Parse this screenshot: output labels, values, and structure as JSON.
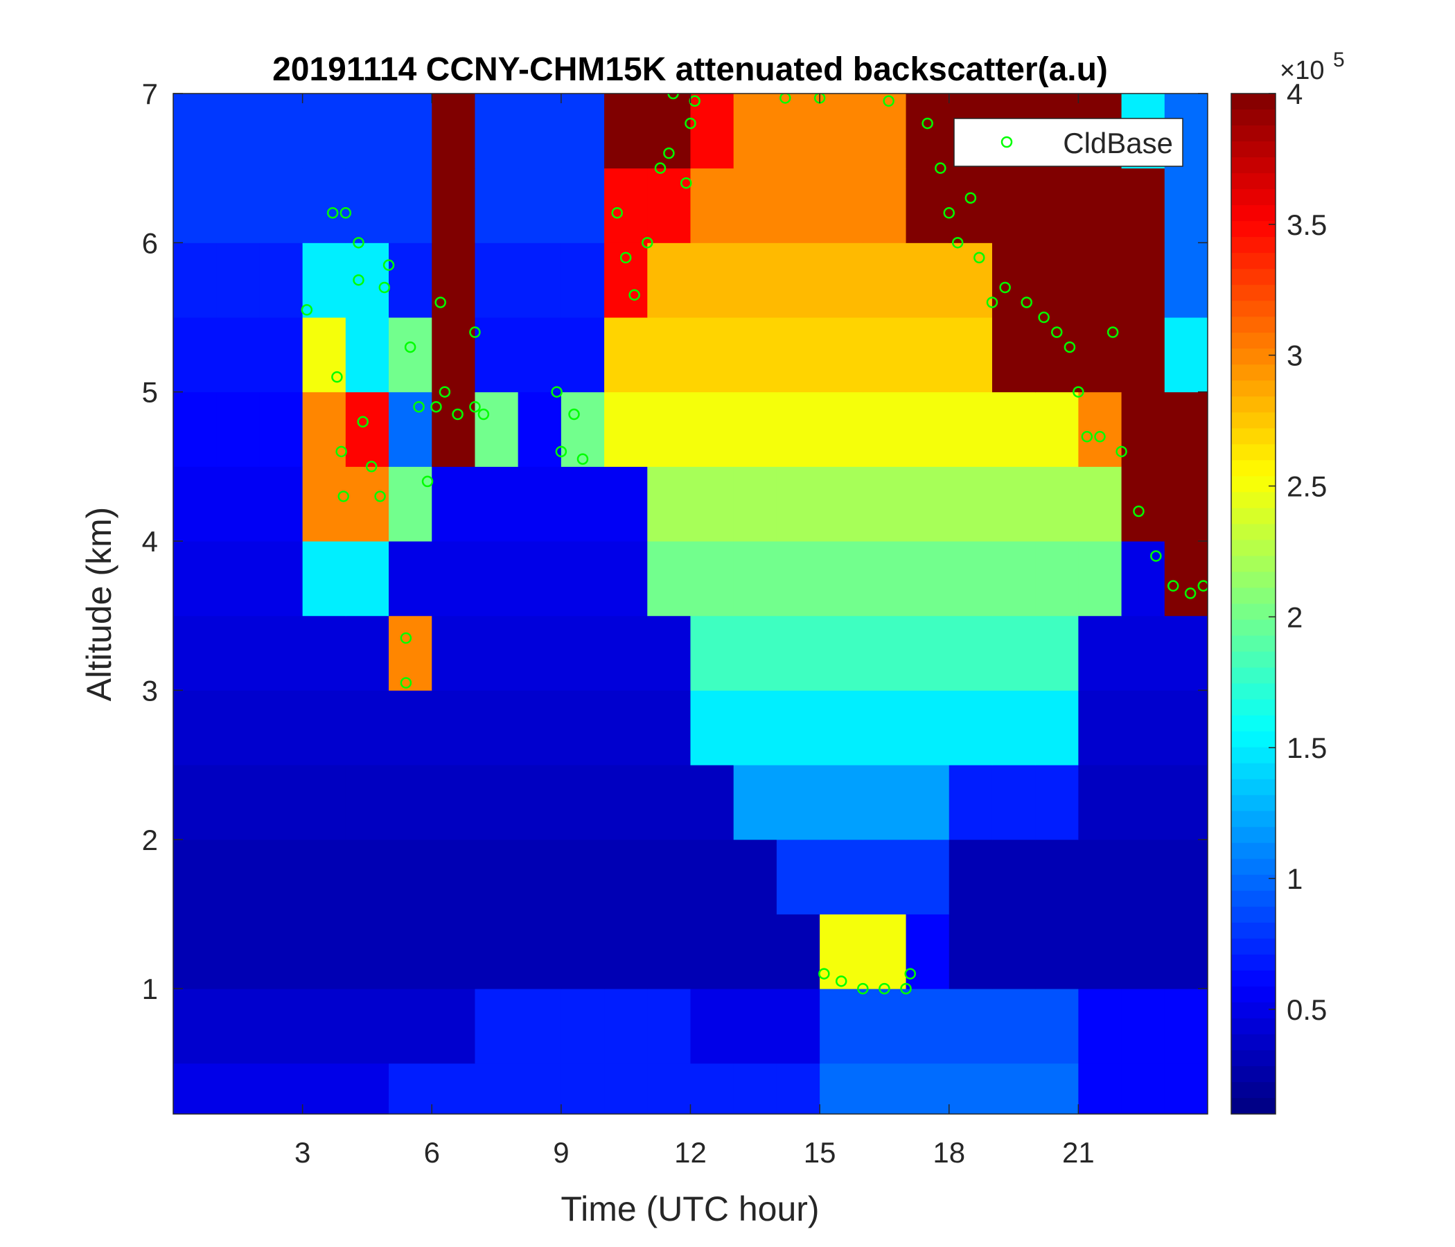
{
  "chart_data": {
    "type": "heatmap",
    "title": "20191114 CCNY-CHM15K attenuated backscatter(a.u)",
    "x_label": "Time (UTC hour)",
    "y_label": "Altitude (km)",
    "xlim": [
      0,
      24
    ],
    "xticks": [
      3,
      6,
      9,
      12,
      15,
      18,
      21
    ],
    "ylim": [
      0.16,
      7
    ],
    "yticks": [
      1,
      2,
      3,
      4,
      5,
      6,
      7
    ],
    "colormap": "jet",
    "clim": [
      0.1,
      4
    ],
    "cticks": [
      0.5,
      1,
      1.5,
      2,
      2.5,
      3,
      3.5,
      4
    ],
    "colorbar_multiplier": "×10",
    "colorbar_exponent": "5",
    "legend_position": "upper right",
    "x": [
      0.5,
      1.5,
      2.5,
      3.5,
      4.5,
      5.5,
      6.5,
      7.5,
      8.5,
      9.5,
      10.5,
      11.5,
      12.5,
      13.5,
      14.5,
      15.5,
      16.5,
      17.5,
      18.5,
      19.5,
      20.5,
      21.5,
      22.5,
      23.5
    ],
    "y": [
      0.25,
      0.75,
      1.25,
      1.75,
      2.25,
      2.75,
      3.25,
      3.75,
      4.25,
      4.75,
      5.25,
      5.75,
      6.25,
      6.75
    ],
    "z": [
      [
        0.5,
        0.5,
        0.5,
        0.5,
        0.5,
        0.7,
        0.7,
        0.7,
        0.7,
        0.7,
        0.7,
        0.7,
        0.7,
        0.7,
        0.7,
        1.0,
        1.0,
        1.0,
        1.0,
        1.0,
        1.0,
        0.6,
        0.6,
        0.6
      ],
      [
        0.4,
        0.4,
        0.4,
        0.4,
        0.4,
        0.4,
        0.4,
        0.7,
        0.7,
        0.7,
        0.7,
        0.7,
        0.5,
        0.5,
        0.5,
        0.9,
        0.9,
        0.9,
        0.9,
        0.9,
        0.9,
        0.6,
        0.6,
        0.6
      ],
      [
        0.3,
        0.3,
        0.3,
        0.3,
        0.3,
        0.3,
        0.3,
        0.3,
        0.3,
        0.3,
        0.3,
        0.3,
        0.3,
        0.3,
        0.3,
        2.5,
        2.5,
        0.6,
        0.3,
        0.3,
        0.3,
        0.3,
        0.3,
        0.3
      ],
      [
        0.3,
        0.3,
        0.3,
        0.3,
        0.3,
        0.3,
        0.3,
        0.3,
        0.3,
        0.3,
        0.3,
        0.3,
        0.3,
        0.3,
        0.8,
        0.8,
        0.8,
        0.8,
        0.3,
        0.3,
        0.3,
        0.3,
        0.3,
        0.3
      ],
      [
        0.35,
        0.35,
        0.35,
        0.35,
        0.35,
        0.35,
        0.35,
        0.35,
        0.35,
        0.35,
        0.35,
        0.35,
        0.35,
        1.2,
        1.2,
        1.2,
        1.2,
        1.2,
        0.7,
        0.7,
        0.7,
        0.35,
        0.35,
        0.35
      ],
      [
        0.4,
        0.4,
        0.4,
        0.4,
        0.4,
        0.4,
        0.4,
        0.4,
        0.4,
        0.4,
        0.4,
        0.4,
        1.5,
        1.5,
        1.5,
        1.5,
        1.5,
        1.5,
        1.5,
        1.5,
        1.5,
        0.4,
        0.4,
        0.4
      ],
      [
        0.45,
        0.45,
        0.45,
        0.45,
        0.45,
        3,
        0.45,
        0.45,
        0.45,
        0.45,
        0.45,
        0.45,
        1.8,
        1.8,
        1.8,
        1.8,
        1.8,
        1.8,
        1.8,
        1.8,
        1.8,
        0.45,
        0.45,
        0.45
      ],
      [
        0.5,
        0.5,
        0.5,
        1.5,
        1.5,
        0.5,
        0.5,
        0.5,
        0.5,
        0.5,
        0.5,
        2.0,
        2.0,
        2.0,
        2.0,
        2.0,
        2.0,
        2.0,
        2.0,
        2.0,
        2.0,
        2.0,
        0.5,
        4
      ],
      [
        0.55,
        0.55,
        0.55,
        3,
        3,
        2,
        0.55,
        0.55,
        0.55,
        0.55,
        0.55,
        2.2,
        2.2,
        2.2,
        2.2,
        2.2,
        2.2,
        2.2,
        2.2,
        2.2,
        2.2,
        2.2,
        4,
        4
      ],
      [
        0.6,
        0.6,
        0.6,
        3,
        3.5,
        1,
        4,
        2,
        0.6,
        2,
        2.5,
        2.5,
        2.5,
        2.5,
        2.5,
        2.5,
        2.5,
        2.5,
        2.5,
        2.5,
        2.5,
        3,
        4,
        4
      ],
      [
        0.65,
        0.65,
        0.65,
        2.5,
        1.5,
        2,
        4,
        0.65,
        0.65,
        0.65,
        2.7,
        2.7,
        2.7,
        2.7,
        2.7,
        2.7,
        2.7,
        2.7,
        2.7,
        4,
        4,
        4,
        4,
        1.5
      ],
      [
        0.7,
        0.7,
        0.7,
        1.5,
        1.5,
        0.7,
        4,
        0.7,
        0.7,
        0.7,
        3.5,
        2.8,
        2.8,
        2.8,
        2.8,
        2.8,
        2.8,
        2.8,
        2.8,
        4,
        4,
        4,
        4,
        1
      ],
      [
        0.8,
        0.8,
        0.8,
        0.8,
        0.8,
        0.8,
        4,
        0.8,
        0.8,
        0.8,
        3.5,
        3.5,
        3,
        3,
        3,
        3,
        3,
        4,
        4,
        4,
        4,
        4,
        4,
        1
      ],
      [
        0.8,
        0.8,
        0.8,
        0.8,
        0.8,
        0.8,
        4,
        0.8,
        0.8,
        0.8,
        4,
        4,
        3.5,
        3,
        3,
        3,
        3,
        4,
        4,
        4,
        4,
        4,
        1.5,
        1
      ]
    ],
    "series": [
      {
        "name": "CldBase",
        "color": "#00ff00",
        "x": [
          3.1,
          3.7,
          3.8,
          3.9,
          3.95,
          4.0,
          4.3,
          4.3,
          4.4,
          4.6,
          4.8,
          4.9,
          5.0,
          5.4,
          5.4,
          5.5,
          5.7,
          5.9,
          6.1,
          6.2,
          6.3,
          6.6,
          7.0,
          7.2,
          7.0,
          8.9,
          9.0,
          9.3,
          9.5,
          10.3,
          10.5,
          10.7,
          11.0,
          11.3,
          11.5,
          11.6,
          11.9,
          12.0,
          12.1,
          14.2,
          15.0,
          15.1,
          15.5,
          16.0,
          16.5,
          17.0,
          17.1,
          16.6,
          17.5,
          17.8,
          18.0,
          18.2,
          18.5,
          18.7,
          19.0,
          19.3,
          19.8,
          20.2,
          20.5,
          20.8,
          21.0,
          21.2,
          21.5,
          21.8,
          22.0,
          22.4,
          22.8,
          23.2,
          23.6,
          23.9
        ],
        "y": [
          5.55,
          6.2,
          5.1,
          4.6,
          4.3,
          6.2,
          6.0,
          5.75,
          4.8,
          4.5,
          4.3,
          5.7,
          5.85,
          3.05,
          3.35,
          5.3,
          4.9,
          4.4,
          4.9,
          5.6,
          5.0,
          4.85,
          4.9,
          4.85,
          5.4,
          5.0,
          4.6,
          4.85,
          4.55,
          6.2,
          5.9,
          5.65,
          6.0,
          6.5,
          6.6,
          7.0,
          6.4,
          6.8,
          6.95,
          6.97,
          6.97,
          1.1,
          1.05,
          1.0,
          1.0,
          1.0,
          1.1,
          6.95,
          6.8,
          6.5,
          6.2,
          6.0,
          6.3,
          5.9,
          5.6,
          5.7,
          5.6,
          5.5,
          5.4,
          5.3,
          5.0,
          4.7,
          4.7,
          5.4,
          4.6,
          4.2,
          3.9,
          3.7,
          3.65,
          3.7
        ]
      }
    ]
  }
}
